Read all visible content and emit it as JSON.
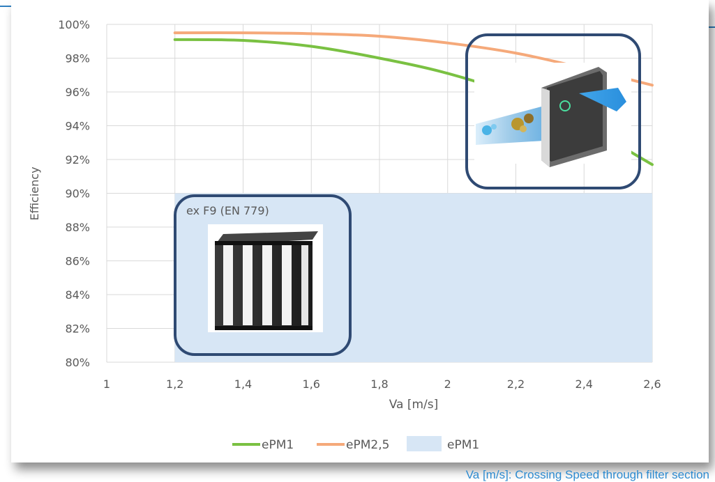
{
  "chart_data": {
    "type": "line",
    "xlabel": "Va [m/s]",
    "ylabel": "Efficiency",
    "xlim": [
      1,
      2.6
    ],
    "ylim": [
      80,
      100
    ],
    "x_ticks": [
      "1",
      "1,2",
      "1,4",
      "1,6",
      "1,8",
      "2",
      "2,2",
      "2,4",
      "2,6"
    ],
    "y_ticks": [
      "80%",
      "82%",
      "84%",
      "86%",
      "88%",
      "90%",
      "92%",
      "94%",
      "96%",
      "98%",
      "100%"
    ],
    "grid": true,
    "legend_position": "bottom",
    "series": [
      {
        "name": "ePM1",
        "kind": "line",
        "color": "#7ac142",
        "points": [
          [
            1.2,
            99.1
          ],
          [
            1.4,
            99.05
          ],
          [
            1.6,
            98.7
          ],
          [
            1.8,
            98.0
          ],
          [
            2.0,
            97.1
          ],
          [
            2.2,
            95.8
          ],
          [
            2.4,
            94.0
          ],
          [
            2.6,
            91.7
          ]
        ]
      },
      {
        "name": "ePM2,5",
        "kind": "line",
        "color": "#f5a97a",
        "points": [
          [
            1.2,
            99.5
          ],
          [
            1.4,
            99.5
          ],
          [
            1.6,
            99.45
          ],
          [
            1.8,
            99.3
          ],
          [
            2.0,
            98.9
          ],
          [
            2.2,
            98.3
          ],
          [
            2.4,
            97.4
          ],
          [
            2.6,
            96.4
          ]
        ]
      },
      {
        "name": "ePM1",
        "kind": "area",
        "color": "#d7e6f5",
        "x_range": [
          1.2,
          2.6
        ],
        "y_range": [
          80,
          90
        ]
      }
    ],
    "annotations": [
      {
        "text": "ex F9 (EN 779)"
      }
    ]
  },
  "footnote": "Va [m/s]: Crossing Speed through filter section",
  "icons": {
    "bag_filter": "v-bag-filter-icon",
    "filter_flow": "filter-airflow-illustration-icon"
  },
  "colors": {
    "frame": "#2f4a73",
    "grid": "#d9d9d9",
    "axis_text": "#595959",
    "footnote": "#2e8bd0"
  }
}
